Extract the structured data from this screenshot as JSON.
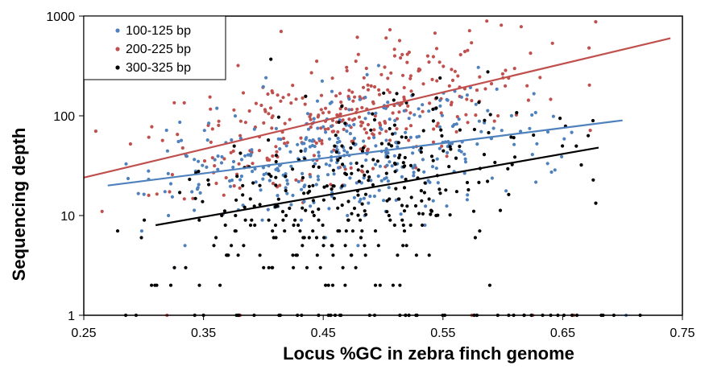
{
  "chart_data": {
    "type": "scatter",
    "xlabel": "Locus %GC in zebra finch genome",
    "ylabel": "Sequencing depth",
    "xlim": [
      0.25,
      0.75
    ],
    "ylim": [
      1,
      1000
    ],
    "y_scale": "log",
    "x_ticks": [
      "0.25",
      "0.35",
      "0.45",
      "0.55",
      "0.65",
      "0.75"
    ],
    "y_ticks": [
      "1",
      "10",
      "100",
      "1000"
    ],
    "grid": false,
    "legend_position": "top-left",
    "series": [
      {
        "name": "100-125 bp",
        "color": "#4f81bd",
        "trend": {
          "x": [
            0.27,
            0.7
          ],
          "y": [
            20,
            90
          ]
        }
      },
      {
        "name": "200-225 bp",
        "color": "#c0504d",
        "trend": {
          "x": [
            0.25,
            0.74
          ],
          "y": [
            24,
            600
          ]
        }
      },
      {
        "name": "300-325 bp",
        "color": "#000000",
        "trend": {
          "x": [
            0.31,
            0.68
          ],
          "y": [
            8,
            48
          ]
        }
      }
    ]
  }
}
